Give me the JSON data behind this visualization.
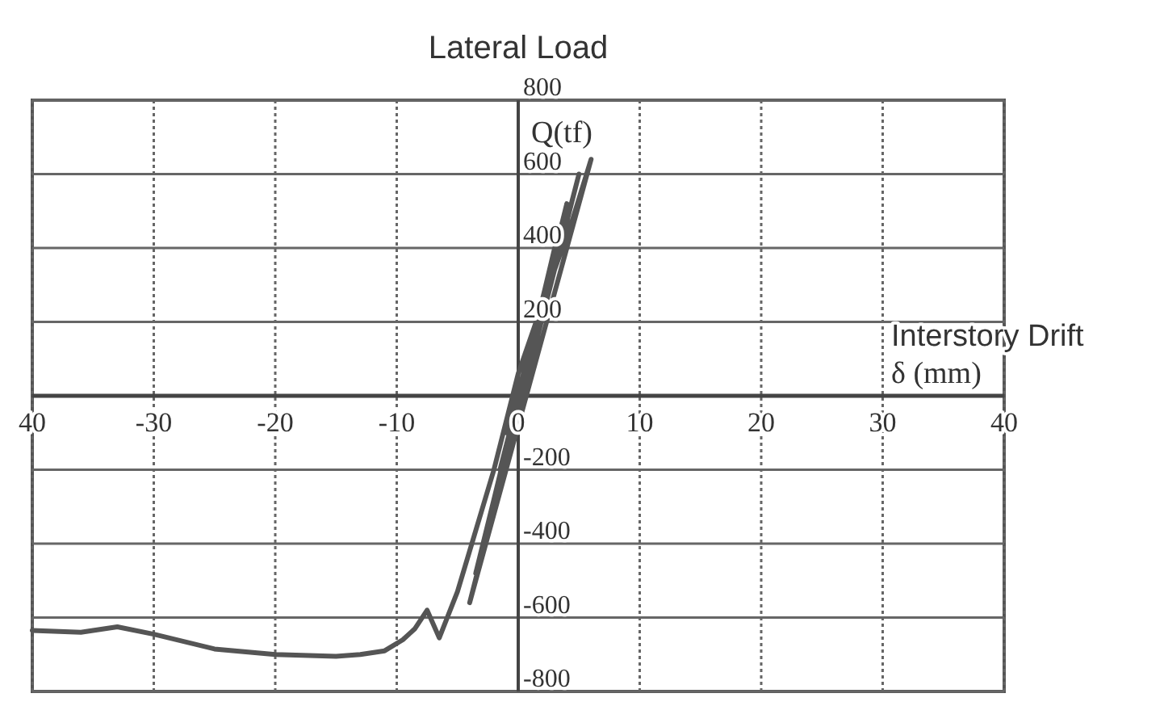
{
  "chart_data": {
    "type": "line",
    "title": "Lateral Load",
    "xlabel": "Interstory Drift δ (mm)",
    "ylabel": "Q(tf)",
    "xlim": [
      -40,
      40
    ],
    "ylim": [
      -800,
      800
    ],
    "xticks": [
      {
        "value": -40,
        "label": "40"
      },
      -30,
      -20,
      -10,
      0,
      10,
      20,
      30,
      40
    ],
    "yticks": [
      -800,
      -600,
      -400,
      -200,
      {
        "value": 0,
        "label": null
      },
      200,
      400,
      600,
      800
    ],
    "grid": true,
    "series": [
      {
        "color": "#555555",
        "x": [
          0,
          1,
          -1,
          1.5,
          -1.5,
          2,
          -2,
          2.5,
          -2.5,
          3,
          -3,
          4,
          -3.5,
          5,
          -4,
          6,
          4.5,
          2,
          0,
          -2,
          -4,
          -5,
          -6.5,
          -7.5,
          -8.5,
          -9.5,
          -11,
          -13,
          -15,
          -20,
          -25,
          -30,
          -33,
          -36,
          -40
        ],
        "values": [
          0,
          100,
          -100,
          180,
          -200,
          250,
          -280,
          330,
          -360,
          400,
          -430,
          520,
          -480,
          600,
          -560,
          640,
          480,
          250,
          60,
          -200,
          -420,
          -530,
          -655,
          -580,
          -630,
          -660,
          -690,
          -700,
          -705,
          -700,
          -685,
          -645,
          -625,
          -640,
          -635
        ]
      }
    ]
  }
}
